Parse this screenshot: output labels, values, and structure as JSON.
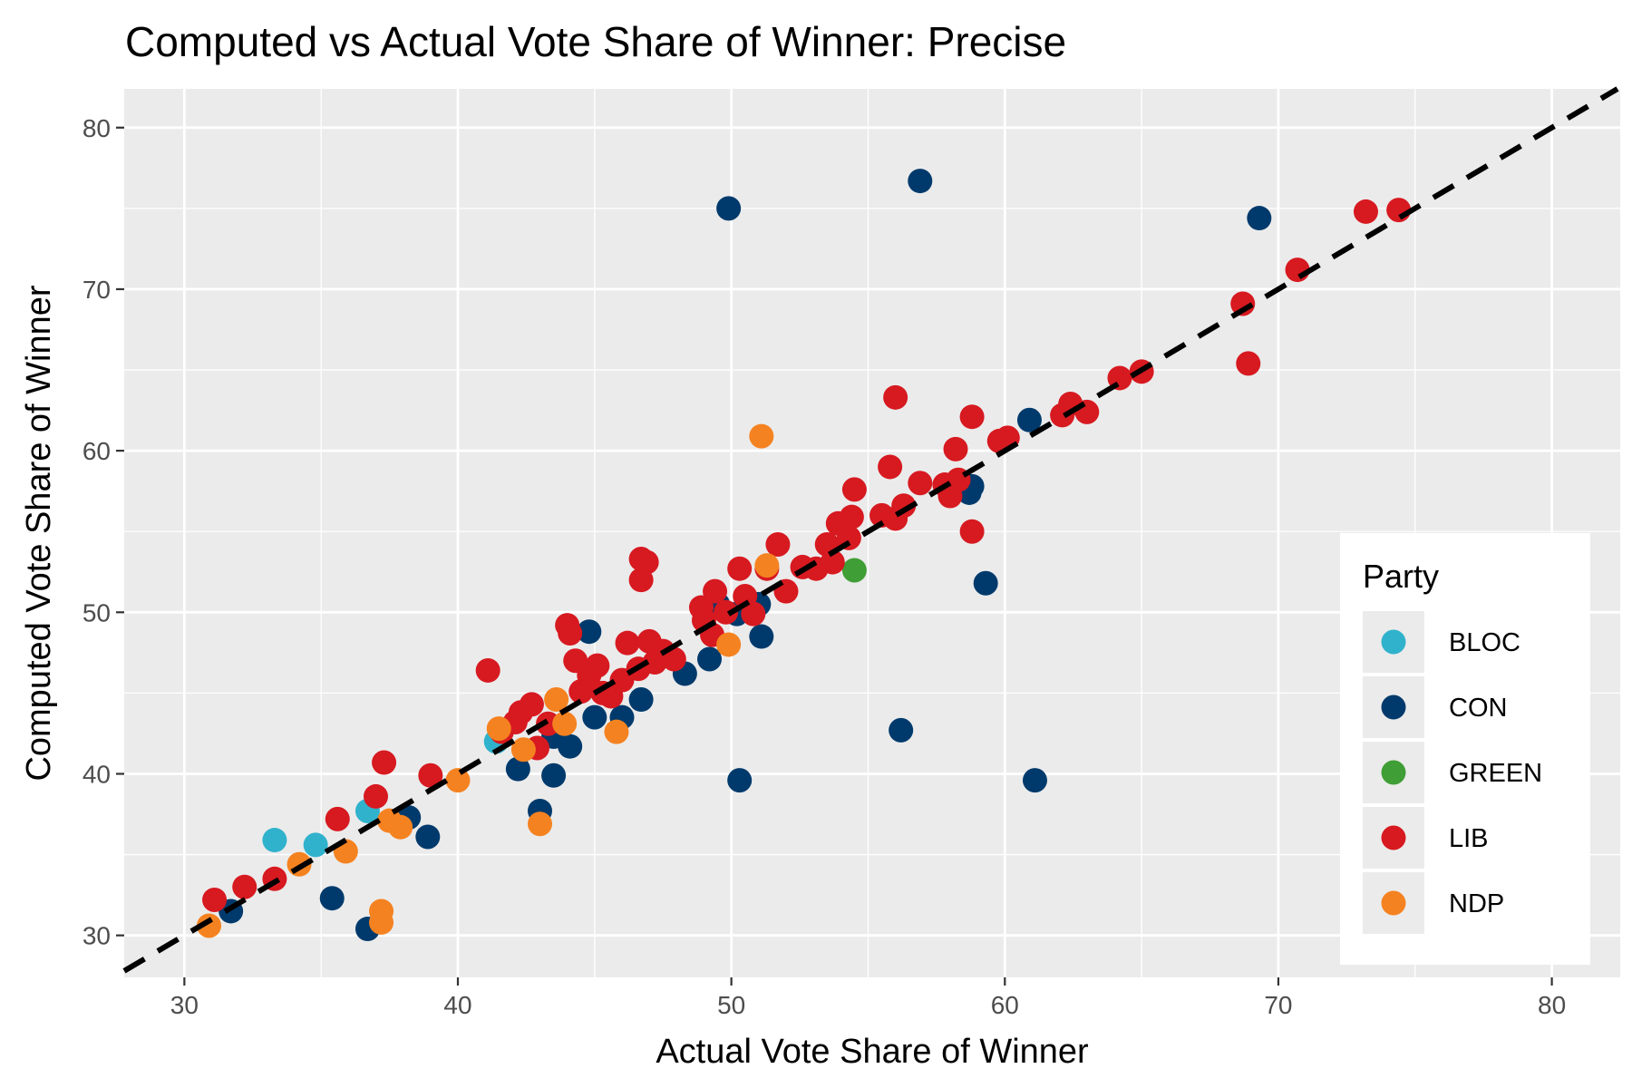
{
  "chart_data": {
    "type": "scatter",
    "title": "Computed vs Actual Vote Share of Winner: Precise",
    "xlabel": "Actual Vote Share of Winner",
    "ylabel": "Computed Vote Share of Winner",
    "xlim": [
      27.8,
      82.5
    ],
    "ylim": [
      27.4,
      82.4
    ],
    "x_ticks": [
      30,
      40,
      50,
      60,
      70,
      80
    ],
    "y_ticks": [
      30,
      40,
      50,
      60,
      70,
      80
    ],
    "grid": true,
    "legend_title": "Party",
    "legend_position": "bottom-right",
    "reference_line": {
      "style": "dashed",
      "color": "#000000",
      "slope": 1,
      "intercept": 0
    },
    "series": [
      {
        "name": "BLOC",
        "color": "#31B2CC",
        "points": [
          [
            33.3,
            35.9
          ],
          [
            34.8,
            35.6
          ],
          [
            36.7,
            37.7
          ],
          [
            41.4,
            42.0
          ]
        ]
      },
      {
        "name": "CON",
        "color": "#003A6C",
        "points": [
          [
            31.7,
            31.5
          ],
          [
            35.4,
            32.3
          ],
          [
            36.7,
            30.4
          ],
          [
            38.2,
            37.3
          ],
          [
            38.9,
            36.1
          ],
          [
            42.2,
            40.3
          ],
          [
            43.0,
            37.7
          ],
          [
            43.5,
            39.9
          ],
          [
            43.5,
            42.3
          ],
          [
            44.1,
            41.7
          ],
          [
            44.8,
            48.8
          ],
          [
            45.0,
            43.5
          ],
          [
            46.0,
            43.5
          ],
          [
            46.7,
            44.6
          ],
          [
            48.3,
            46.2
          ],
          [
            49.2,
            47.1
          ],
          [
            49.5,
            50.5
          ],
          [
            50.2,
            49.9
          ],
          [
            50.3,
            39.6
          ],
          [
            51.0,
            50.5
          ],
          [
            51.1,
            48.5
          ],
          [
            49.9,
            75.0
          ],
          [
            56.2,
            42.7
          ],
          [
            56.9,
            76.7
          ],
          [
            58.7,
            57.4
          ],
          [
            58.8,
            57.8
          ],
          [
            59.3,
            51.8
          ],
          [
            60.9,
            61.9
          ],
          [
            61.1,
            39.6
          ],
          [
            69.3,
            74.4
          ]
        ]
      },
      {
        "name": "GREEN",
        "color": "#3F9E35",
        "points": [
          [
            54.5,
            52.6
          ]
        ]
      },
      {
        "name": "LIB",
        "color": "#D71920",
        "points": [
          [
            31.1,
            32.2
          ],
          [
            32.2,
            33.0
          ],
          [
            33.3,
            33.5
          ],
          [
            35.6,
            37.2
          ],
          [
            37.0,
            38.6
          ],
          [
            37.3,
            40.7
          ],
          [
            39.0,
            39.9
          ],
          [
            41.1,
            46.4
          ],
          [
            41.6,
            42.6
          ],
          [
            42.1,
            43.2
          ],
          [
            42.3,
            43.8
          ],
          [
            42.7,
            44.3
          ],
          [
            42.9,
            41.6
          ],
          [
            43.3,
            43.1
          ],
          [
            44.0,
            49.2
          ],
          [
            44.1,
            48.7
          ],
          [
            44.3,
            47.0
          ],
          [
            44.5,
            45.1
          ],
          [
            44.8,
            46.1
          ],
          [
            45.1,
            46.7
          ],
          [
            45.3,
            45.0
          ],
          [
            45.6,
            44.8
          ],
          [
            46.0,
            45.8
          ],
          [
            46.2,
            48.1
          ],
          [
            46.6,
            46.5
          ],
          [
            46.7,
            52.0
          ],
          [
            46.7,
            53.3
          ],
          [
            46.9,
            53.1
          ],
          [
            47.0,
            48.2
          ],
          [
            47.2,
            46.9
          ],
          [
            47.5,
            47.6
          ],
          [
            47.9,
            47.1
          ],
          [
            48.9,
            50.3
          ],
          [
            49.0,
            49.5
          ],
          [
            49.3,
            48.6
          ],
          [
            49.4,
            51.3
          ],
          [
            49.8,
            50.0
          ],
          [
            50.3,
            52.7
          ],
          [
            50.5,
            51.0
          ],
          [
            50.8,
            49.9
          ],
          [
            51.3,
            52.7
          ],
          [
            51.7,
            54.2
          ],
          [
            52.0,
            51.3
          ],
          [
            52.6,
            52.8
          ],
          [
            53.1,
            52.7
          ],
          [
            53.5,
            54.2
          ],
          [
            53.7,
            53.1
          ],
          [
            53.9,
            55.5
          ],
          [
            54.3,
            54.6
          ],
          [
            54.4,
            55.9
          ],
          [
            54.5,
            57.6
          ],
          [
            55.5,
            56.0
          ],
          [
            55.8,
            59.0
          ],
          [
            56.0,
            63.3
          ],
          [
            56.0,
            55.8
          ],
          [
            56.3,
            56.6
          ],
          [
            56.9,
            58.0
          ],
          [
            57.8,
            57.9
          ],
          [
            58.0,
            57.2
          ],
          [
            58.2,
            60.1
          ],
          [
            58.3,
            58.2
          ],
          [
            58.8,
            62.1
          ],
          [
            58.8,
            55.0
          ],
          [
            59.8,
            60.6
          ],
          [
            60.1,
            60.8
          ],
          [
            62.1,
            62.2
          ],
          [
            62.4,
            62.9
          ],
          [
            63.0,
            62.4
          ],
          [
            64.2,
            64.5
          ],
          [
            65.0,
            64.9
          ],
          [
            68.7,
            69.1
          ],
          [
            68.9,
            65.4
          ],
          [
            70.7,
            71.2
          ],
          [
            73.2,
            74.8
          ],
          [
            74.4,
            74.9
          ]
        ]
      },
      {
        "name": "NDP",
        "color": "#F58220",
        "points": [
          [
            30.9,
            30.6
          ],
          [
            34.2,
            34.4
          ],
          [
            35.9,
            35.2
          ],
          [
            37.2,
            31.5
          ],
          [
            37.2,
            30.8
          ],
          [
            37.5,
            37.1
          ],
          [
            37.9,
            36.7
          ],
          [
            40.0,
            39.6
          ],
          [
            41.5,
            42.8
          ],
          [
            42.4,
            41.5
          ],
          [
            43.0,
            36.9
          ],
          [
            43.6,
            44.6
          ],
          [
            43.9,
            43.1
          ],
          [
            45.8,
            42.6
          ],
          [
            49.9,
            48.0
          ],
          [
            51.1,
            60.9
          ],
          [
            51.3,
            52.9
          ]
        ]
      }
    ]
  }
}
